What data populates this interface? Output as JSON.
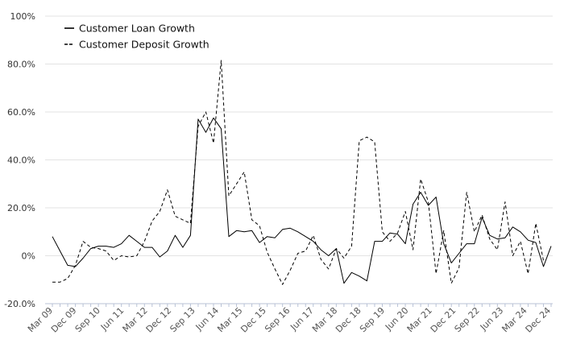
{
  "chart_data": {
    "type": "line",
    "title": "",
    "xlabel": "",
    "ylabel": "",
    "ylim": [
      -20,
      100
    ],
    "y_ticks": [
      {
        "value": 100,
        "label": "100%"
      },
      {
        "value": 80,
        "label": "80.0%"
      },
      {
        "value": 60,
        "label": "60.0%"
      },
      {
        "value": 40,
        "label": "40.0%"
      },
      {
        "value": 20,
        "label": "20.0%"
      },
      {
        "value": 0,
        "label": "0%"
      },
      {
        "value": -20,
        "label": "-20.0%"
      }
    ],
    "grid": "horizontal",
    "legend_position": "top-left",
    "x_labels": [
      "Mar 09",
      "Dec 09",
      "Sep 10",
      "Jun 11",
      "Mar 12",
      "Dec 12",
      "Sep 13",
      "Jun 14",
      "Mar 15",
      "Dec 15",
      "Sep 16",
      "Jun 17",
      "Mar 18",
      "Dec 18",
      "Sep 19",
      "Jun 20",
      "Mar 21",
      "Dec 21",
      "Sep 22",
      "Jun 23",
      "Mar 24",
      "Dec 24"
    ],
    "series": [
      {
        "name": "Customer Loan Growth",
        "style": "solid",
        "color": "#000000",
        "values": [
          8,
          2,
          -4,
          -4.5,
          -1,
          3,
          4,
          4,
          3.5,
          5,
          8.5,
          6,
          3.5,
          3.5,
          -0.5,
          2,
          8.5,
          3.5,
          8.5,
          57,
          51.5,
          57.5,
          53,
          8,
          10.5,
          10,
          10.5,
          5.5,
          8,
          7.5,
          11,
          11.5,
          10,
          8,
          6,
          2.5,
          0,
          3,
          -11.5,
          -7,
          -8.5,
          -10.5,
          6,
          6,
          9.5,
          9,
          5,
          21.5,
          26.5,
          21,
          24.5,
          5,
          -3,
          1,
          5,
          5,
          16,
          8.5,
          7,
          7.5,
          12,
          10,
          6.5,
          5.5,
          -4.5,
          4
        ]
      },
      {
        "name": "Customer Deposit Growth",
        "style": "dashed",
        "color": "#000000",
        "values": [
          -11,
          -11,
          -9.5,
          -4,
          6,
          3.5,
          3,
          2,
          -2,
          0,
          -0.5,
          0,
          6,
          14.5,
          18.5,
          27.5,
          16.5,
          15,
          13.5,
          54,
          60,
          47,
          81.5,
          25,
          30,
          35,
          15,
          12.5,
          1.5,
          -5.5,
          -12,
          -6,
          1,
          2,
          8.5,
          -1.5,
          -5.5,
          3,
          -1,
          4,
          48,
          49.5,
          47.5,
          10,
          6,
          9.5,
          18.5,
          2.5,
          32,
          22.5,
          -7.5,
          10.5,
          -11.5,
          -5,
          26.5,
          10,
          17,
          7,
          2.5,
          22.5,
          0,
          6,
          -7.5,
          13.5,
          -2
        ]
      }
    ]
  }
}
